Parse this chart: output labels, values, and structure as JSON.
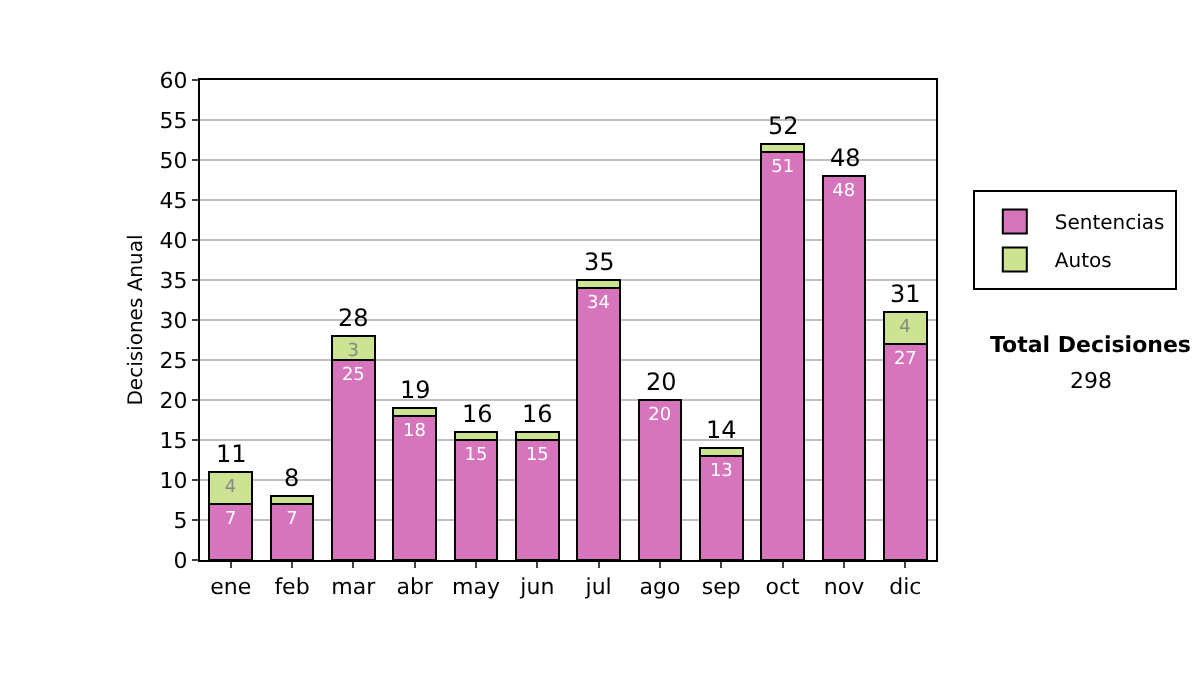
{
  "chart_data": {
    "type": "bar",
    "stacked": true,
    "ylabel": "Decisiones Anual",
    "categories": [
      "ene",
      "feb",
      "mar",
      "abr",
      "may",
      "jun",
      "jul",
      "ago",
      "sep",
      "oct",
      "nov",
      "dic"
    ],
    "series": [
      {
        "name": "Sentencias",
        "color": "#d674bc",
        "values": [
          7,
          7,
          25,
          18,
          15,
          15,
          34,
          20,
          13,
          51,
          48,
          27
        ],
        "value_labels": [
          "7",
          "7",
          "25",
          "18",
          "15",
          "15",
          "34",
          "20",
          "13",
          "51",
          "48",
          "27"
        ]
      },
      {
        "name": "Autos",
        "color": "#cce391",
        "values": [
          4,
          1,
          3,
          1,
          1,
          1,
          1,
          0,
          1,
          1,
          0,
          4
        ],
        "value_labels": [
          "4",
          null,
          "3",
          null,
          null,
          null,
          null,
          null,
          null,
          null,
          null,
          "4"
        ]
      }
    ],
    "totals": [
      "11",
      "8",
      "28",
      "19",
      "16",
      "16",
      "35",
      "20",
      "14",
      "52",
      "48",
      "31"
    ],
    "ylim": [
      0,
      60
    ],
    "yticks": [
      0,
      5,
      10,
      15,
      20,
      25,
      30,
      35,
      40,
      45,
      50,
      55,
      60
    ],
    "grid": "y",
    "legend": "right",
    "annotations": [
      "Total Decisiones",
      "298"
    ]
  }
}
